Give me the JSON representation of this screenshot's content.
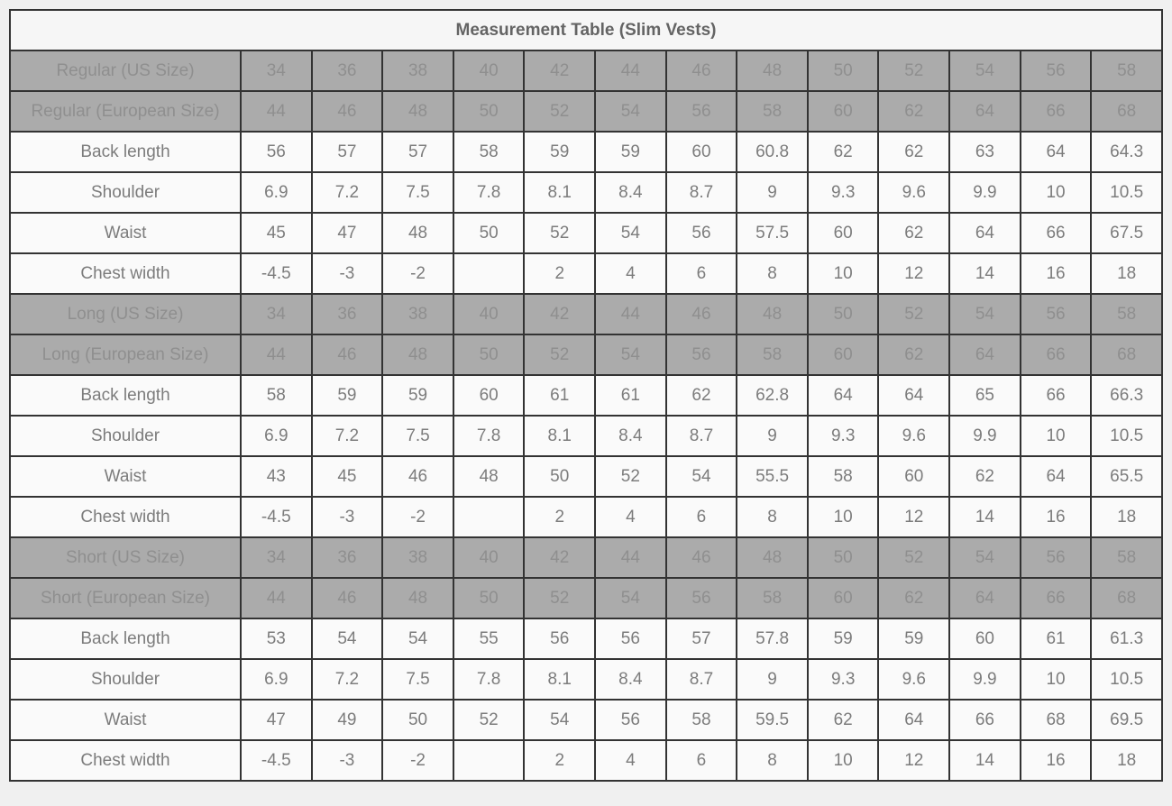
{
  "chart_data": {
    "type": "table",
    "title": "Measurement Table (Slim Vests)",
    "columns_note": "first column is measurement label, then 13 size columns",
    "sections": [
      {
        "name": "Regular",
        "size_rows": [
          {
            "label": "Regular (US Size)",
            "values": [
              "34",
              "36",
              "38",
              "40",
              "42",
              "44",
              "46",
              "48",
              "50",
              "52",
              "54",
              "56",
              "58"
            ]
          },
          {
            "label": "Regular (European Size)",
            "values": [
              "44",
              "46",
              "48",
              "50",
              "52",
              "54",
              "56",
              "58",
              "60",
              "62",
              "64",
              "66",
              "68"
            ]
          }
        ],
        "measurement_rows": [
          {
            "label": "Back length",
            "values": [
              "56",
              "57",
              "57",
              "58",
              "59",
              "59",
              "60",
              "60.8",
              "62",
              "62",
              "63",
              "64",
              "64.3"
            ]
          },
          {
            "label": "Shoulder",
            "values": [
              "6.9",
              "7.2",
              "7.5",
              "7.8",
              "8.1",
              "8.4",
              "8.7",
              "9",
              "9.3",
              "9.6",
              "9.9",
              "10",
              "10.5"
            ]
          },
          {
            "label": "Waist",
            "values": [
              "45",
              "47",
              "48",
              "50",
              "52",
              "54",
              "56",
              "57.5",
              "60",
              "62",
              "64",
              "66",
              "67.5"
            ]
          },
          {
            "label": "Chest width",
            "values": [
              "-4.5",
              "-3",
              "-2",
              "",
              "2",
              "4",
              "6",
              "8",
              "10",
              "12",
              "14",
              "16",
              "18"
            ]
          }
        ]
      },
      {
        "name": "Long",
        "size_rows": [
          {
            "label": "Long (US Size)",
            "values": [
              "34",
              "36",
              "38",
              "40",
              "42",
              "44",
              "46",
              "48",
              "50",
              "52",
              "54",
              "56",
              "58"
            ]
          },
          {
            "label": "Long (European Size)",
            "values": [
              "44",
              "46",
              "48",
              "50",
              "52",
              "54",
              "56",
              "58",
              "60",
              "62",
              "64",
              "66",
              "68"
            ]
          }
        ],
        "measurement_rows": [
          {
            "label": "Back length",
            "values": [
              "58",
              "59",
              "59",
              "60",
              "61",
              "61",
              "62",
              "62.8",
              "64",
              "64",
              "65",
              "66",
              "66.3"
            ]
          },
          {
            "label": "Shoulder",
            "values": [
              "6.9",
              "7.2",
              "7.5",
              "7.8",
              "8.1",
              "8.4",
              "8.7",
              "9",
              "9.3",
              "9.6",
              "9.9",
              "10",
              "10.5"
            ]
          },
          {
            "label": "Waist",
            "values": [
              "43",
              "45",
              "46",
              "48",
              "50",
              "52",
              "54",
              "55.5",
              "58",
              "60",
              "62",
              "64",
              "65.5"
            ]
          },
          {
            "label": "Chest width",
            "values": [
              "-4.5",
              "-3",
              "-2",
              "",
              "2",
              "4",
              "6",
              "8",
              "10",
              "12",
              "14",
              "16",
              "18"
            ]
          }
        ]
      },
      {
        "name": "Short",
        "size_rows": [
          {
            "label": "Short (US Size)",
            "values": [
              "34",
              "36",
              "38",
              "40",
              "42",
              "44",
              "46",
              "48",
              "50",
              "52",
              "54",
              "56",
              "58"
            ]
          },
          {
            "label": "Short (European Size)",
            "values": [
              "44",
              "46",
              "48",
              "50",
              "52",
              "54",
              "56",
              "58",
              "60",
              "62",
              "64",
              "66",
              "68"
            ]
          }
        ],
        "measurement_rows": [
          {
            "label": "Back length",
            "values": [
              "53",
              "54",
              "54",
              "55",
              "56",
              "56",
              "57",
              "57.8",
              "59",
              "59",
              "60",
              "61",
              "61.3"
            ]
          },
          {
            "label": "Shoulder",
            "values": [
              "6.9",
              "7.2",
              "7.5",
              "7.8",
              "8.1",
              "8.4",
              "8.7",
              "9",
              "9.3",
              "9.6",
              "9.9",
              "10",
              "10.5"
            ]
          },
          {
            "label": "Waist",
            "values": [
              "47",
              "49",
              "50",
              "52",
              "54",
              "56",
              "58",
              "59.5",
              "62",
              "64",
              "66",
              "68",
              "69.5"
            ]
          },
          {
            "label": "Chest width",
            "values": [
              "-4.5",
              "-3",
              "-2",
              "",
              "2",
              "4",
              "6",
              "8",
              "10",
              "12",
              "14",
              "16",
              "18"
            ]
          }
        ]
      }
    ],
    "colors": {
      "page_bg": "#f0f0f0",
      "title_bg": "#f6f6f6",
      "title_text": "#646464",
      "header_row_bg": "#ababab",
      "header_row_text": "#8f8f8f",
      "data_row_bg": "#fafafa",
      "data_row_text": "#7c7c7c",
      "border": "#333333"
    }
  }
}
